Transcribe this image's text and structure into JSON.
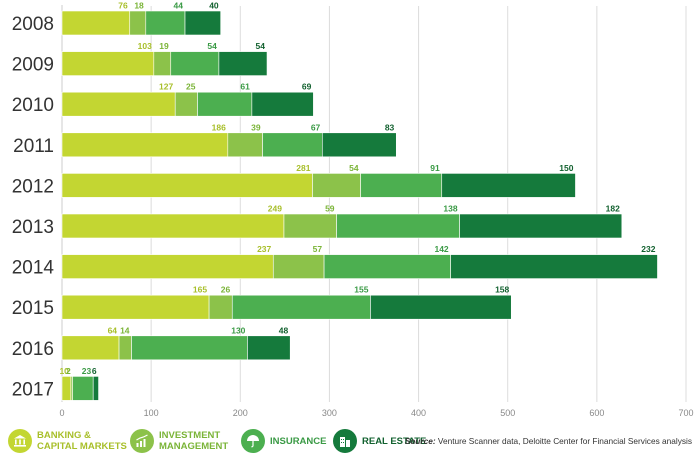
{
  "chart_data": {
    "type": "bar",
    "orientation": "horizontal",
    "stacked": true,
    "categories": [
      "2008",
      "2009",
      "2010",
      "2011",
      "2012",
      "2013",
      "2014",
      "2015",
      "2016",
      "2017"
    ],
    "series": [
      {
        "name": "BANKING & CAPITAL MARKETS",
        "color": "#c3d632",
        "label_color": "#a8bf2a",
        "values": [
          76,
          103,
          127,
          186,
          281,
          249,
          237,
          165,
          64,
          10
        ]
      },
      {
        "name": "INVESTMENT MANAGEMENT",
        "color": "#8cc24a",
        "label_color": "#7ab437",
        "values": [
          18,
          19,
          25,
          39,
          54,
          59,
          57,
          26,
          14,
          2
        ]
      },
      {
        "name": "INSURANCE",
        "color": "#4caf50",
        "label_color": "#3a9a45",
        "values": [
          44,
          54,
          61,
          67,
          91,
          138,
          142,
          155,
          130,
          23
        ]
      },
      {
        "name": "REAL ESTATE",
        "color": "#157a3c",
        "label_color": "#12612f",
        "values": [
          40,
          54,
          69,
          83,
          150,
          182,
          232,
          158,
          48,
          6
        ]
      }
    ],
    "xlim": [
      0,
      700
    ],
    "xticks": [
      "0",
      "100",
      "200",
      "300",
      "400",
      "500",
      "600",
      "700"
    ],
    "grid": true,
    "legend_position": "bottom"
  },
  "legend": {
    "items": [
      {
        "label": "BANKING &\nCAPITAL MARKETS",
        "icon": "bank-icon"
      },
      {
        "label": "INVESTMENT\nMANAGEMENT",
        "icon": "growth-chart-icon"
      },
      {
        "label": "INSURANCE",
        "icon": "umbrella-icon"
      },
      {
        "label": "REAL ESTATE",
        "icon": "buildings-icon"
      }
    ]
  },
  "source": {
    "label": "Source:",
    "text": " Venture Scanner data, Deloitte Center for Financial Services analysis"
  }
}
